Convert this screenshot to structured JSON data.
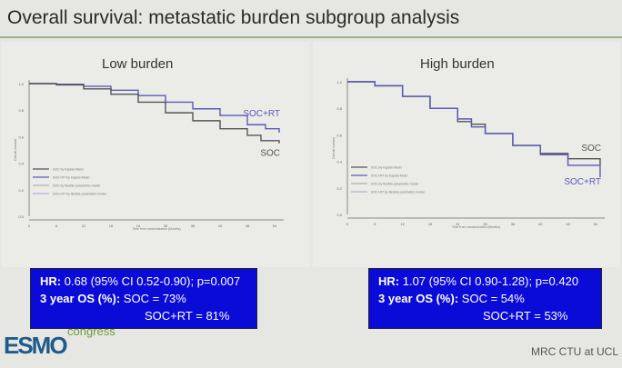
{
  "title": "Overall survival: metastatic burden subgroup analysis",
  "chart_data": [
    {
      "type": "line",
      "title": "Low burden",
      "xlabel": "Time from randomisation (Months)",
      "ylabel": "Overall survival",
      "xlim": [
        0,
        56
      ],
      "ylim": [
        0,
        1
      ],
      "xticks": [
        0,
        6,
        12,
        18,
        24,
        30,
        36,
        42,
        48,
        54
      ],
      "yticks": [
        0.0,
        0.2,
        0.4,
        0.6,
        0.8,
        1.0
      ],
      "legend": [
        "SOC by Kaplan-Meier",
        "SOC+RT by Kaplan-Meier",
        "SOC by flexible parametric model",
        "SOC+RT by flexible parametric model"
      ],
      "series": [
        {
          "name": "SOC+RT",
          "color": "#5a5ab8",
          "x": [
            0,
            6,
            12,
            18,
            24,
            30,
            36,
            42,
            48,
            52,
            55
          ],
          "y": [
            1,
            0.995,
            0.98,
            0.95,
            0.91,
            0.86,
            0.81,
            0.76,
            0.69,
            0.66,
            0.63
          ]
        },
        {
          "name": "SOC",
          "color": "#555555",
          "x": [
            0,
            6,
            12,
            18,
            24,
            30,
            36,
            42,
            48,
            51,
            55
          ],
          "y": [
            1,
            0.99,
            0.96,
            0.92,
            0.86,
            0.78,
            0.72,
            0.66,
            0.61,
            0.57,
            0.55
          ]
        }
      ],
      "annotations": {
        "hr": "HR:",
        "hr_value": "0.68 (95% CI 0.52-0.90); p=0.007",
        "os_label": "3 year OS (%):",
        "os_soc": "SOC = 73%",
        "os_socrt": "SOC+RT = 81%"
      }
    },
    {
      "type": "line",
      "title": "High burden",
      "xlabel": "Time from randomisation (Months)",
      "ylabel": "Overall survival",
      "xlim": [
        0,
        56
      ],
      "ylim": [
        0,
        1
      ],
      "xticks": [
        0,
        6,
        12,
        18,
        24,
        30,
        36,
        42,
        48,
        54
      ],
      "yticks": [
        0.0,
        0.2,
        0.4,
        0.6,
        0.8,
        1.0
      ],
      "legend": [
        "SOC by Kaplan-Meier",
        "SOC+RT by Kaplan-Meier",
        "SOC by flexible parametric model",
        "SOC+RT by flexible parametric model"
      ],
      "series": [
        {
          "name": "SOC",
          "color": "#555555",
          "x": [
            0,
            3,
            6,
            12,
            18,
            24,
            27,
            30,
            36,
            42,
            48,
            55
          ],
          "y": [
            1,
            1,
            0.97,
            0.89,
            0.8,
            0.7,
            0.68,
            0.61,
            0.52,
            0.46,
            0.42,
            0.37
          ]
        },
        {
          "name": "SOC+RT",
          "color": "#5a5ab8",
          "x": [
            0,
            3,
            6,
            12,
            18,
            24,
            27,
            30,
            36,
            42,
            48,
            55
          ],
          "y": [
            1,
            1,
            0.97,
            0.89,
            0.8,
            0.72,
            0.66,
            0.61,
            0.52,
            0.45,
            0.37,
            0.28
          ]
        }
      ],
      "annotations": {
        "hr": "HR:",
        "hr_value": "1.07 (95% CI 0.90-1.28); p=0.420",
        "os_label": "3 year OS (%):",
        "os_soc": "SOC = 54%",
        "os_socrt": "SOC+RT = 53%"
      }
    }
  ],
  "footer": {
    "logo": "ESMO",
    "logo_sub": "congress",
    "credit": "MRC CTU at UCL"
  }
}
